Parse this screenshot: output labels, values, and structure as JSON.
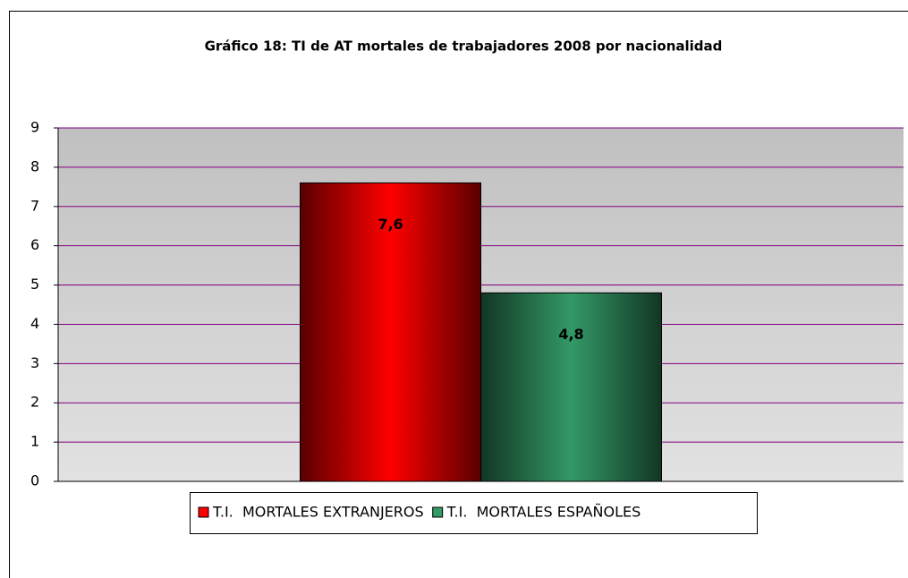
{
  "chart_data": {
    "type": "bar",
    "title": "Gráfico 18: TI de AT mortales de trabajadores 2008 por nacionalidad",
    "categories": [
      null
    ],
    "series": [
      {
        "name": "T.I.  MORTALES EXTRANJEROS",
        "color": "#ff0000",
        "values": [
          7.6
        ],
        "value_labels": [
          "7,6"
        ]
      },
      {
        "name": "T.I.  MORTALES ESPAÑOLES",
        "color": "#339966",
        "values": [
          4.8
        ],
        "value_labels": [
          "4,8"
        ]
      }
    ],
    "ylim": [
      0,
      9
    ],
    "yticks": [
      0,
      1,
      2,
      3,
      4,
      5,
      6,
      7,
      8,
      9
    ],
    "grid": true,
    "legend": "bottom"
  }
}
